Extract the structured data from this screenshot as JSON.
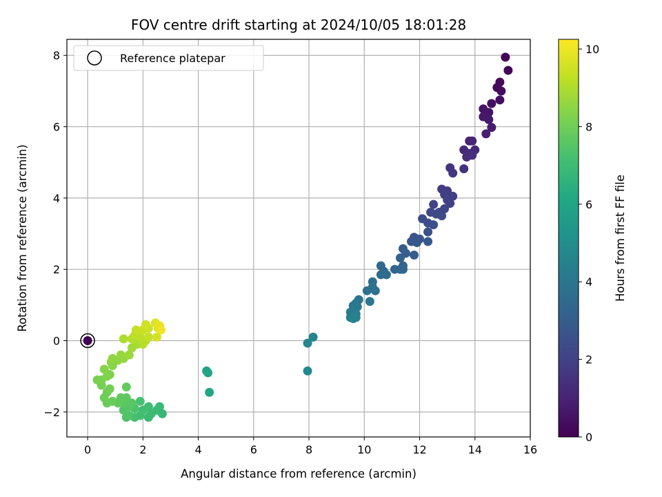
{
  "chart_data": {
    "type": "scatter",
    "title": "FOV centre drift starting at 2024/10/05 18:01:28",
    "xlabel": "Angular distance from reference (arcmin)",
    "ylabel": "Rotation from reference (arcmin)",
    "xlim": [
      -0.75,
      16
    ],
    "ylim": [
      -2.7,
      8.45
    ],
    "xticks": [
      0,
      2,
      4,
      6,
      8,
      10,
      12,
      14,
      16
    ],
    "yticks": [
      -2,
      0,
      2,
      4,
      6,
      8
    ],
    "grid": true,
    "legend": {
      "placement": "upper-left",
      "label": "Reference platepar"
    },
    "reference_point": {
      "x": 0,
      "y": 0
    },
    "colorbar": {
      "label": "Hours from first FF file",
      "colormap": "viridis",
      "range": [
        0,
        10.25
      ],
      "ticks": [
        0,
        2,
        4,
        6,
        8,
        10
      ]
    },
    "series": [
      {
        "points": [
          {
            "x": 0,
            "y": 0,
            "t": 0
          },
          {
            "x": 15.1,
            "y": 7.95,
            "t": 0.05
          },
          {
            "x": 15.2,
            "y": 7.58,
            "t": 0.1
          },
          {
            "x": 14.9,
            "y": 7.25,
            "t": 0.2
          },
          {
            "x": 14.8,
            "y": 7.1,
            "t": 0.25
          },
          {
            "x": 14.95,
            "y": 7.0,
            "t": 0.3
          },
          {
            "x": 14.9,
            "y": 6.75,
            "t": 0.35
          },
          {
            "x": 14.6,
            "y": 6.65,
            "t": 0.45
          },
          {
            "x": 14.3,
            "y": 6.5,
            "t": 0.55
          },
          {
            "x": 14.5,
            "y": 6.4,
            "t": 0.6
          },
          {
            "x": 14.3,
            "y": 6.28,
            "t": 0.65
          },
          {
            "x": 14.5,
            "y": 6.2,
            "t": 0.7
          },
          {
            "x": 14.6,
            "y": 5.98,
            "t": 0.8
          },
          {
            "x": 14.4,
            "y": 5.8,
            "t": 0.9
          },
          {
            "x": 13.8,
            "y": 5.6,
            "t": 1.0
          },
          {
            "x": 13.9,
            "y": 5.6,
            "t": 1.05
          },
          {
            "x": 14.0,
            "y": 5.35,
            "t": 1.15
          },
          {
            "x": 13.6,
            "y": 5.35,
            "t": 1.2
          },
          {
            "x": 13.8,
            "y": 5.25,
            "t": 1.25
          },
          {
            "x": 13.7,
            "y": 5.15,
            "t": 1.3
          },
          {
            "x": 13.9,
            "y": 5.2,
            "t": 1.35
          },
          {
            "x": 13.1,
            "y": 4.85,
            "t": 1.5
          },
          {
            "x": 13.6,
            "y": 4.82,
            "t": 1.55
          },
          {
            "x": 13.2,
            "y": 4.7,
            "t": 1.6
          },
          {
            "x": 12.8,
            "y": 4.25,
            "t": 1.75
          },
          {
            "x": 13.0,
            "y": 4.2,
            "t": 1.8
          },
          {
            "x": 12.9,
            "y": 4.1,
            "t": 1.85
          },
          {
            "x": 13.2,
            "y": 4.05,
            "t": 1.9
          },
          {
            "x": 13.0,
            "y": 3.95,
            "t": 1.95
          },
          {
            "x": 13.1,
            "y": 3.85,
            "t": 2.0
          },
          {
            "x": 12.5,
            "y": 3.82,
            "t": 2.05
          },
          {
            "x": 12.9,
            "y": 3.7,
            "t": 2.1
          },
          {
            "x": 12.7,
            "y": 3.6,
            "t": 2.15
          },
          {
            "x": 12.4,
            "y": 3.6,
            "t": 2.2
          },
          {
            "x": 12.6,
            "y": 3.55,
            "t": 2.25
          },
          {
            "x": 12.8,
            "y": 3.5,
            "t": 2.3
          },
          {
            "x": 12.1,
            "y": 3.42,
            "t": 2.35
          },
          {
            "x": 12.3,
            "y": 3.3,
            "t": 2.4
          },
          {
            "x": 12.5,
            "y": 3.25,
            "t": 2.45
          },
          {
            "x": 12.3,
            "y": 3.05,
            "t": 2.55
          },
          {
            "x": 11.8,
            "y": 2.9,
            "t": 2.65
          },
          {
            "x": 12.0,
            "y": 2.85,
            "t": 2.7
          },
          {
            "x": 11.7,
            "y": 2.78,
            "t": 2.75
          },
          {
            "x": 11.9,
            "y": 2.75,
            "t": 2.8
          },
          {
            "x": 12.3,
            "y": 2.78,
            "t": 2.85
          },
          {
            "x": 11.4,
            "y": 2.58,
            "t": 2.95
          },
          {
            "x": 11.5,
            "y": 2.45,
            "t": 3.0
          },
          {
            "x": 11.8,
            "y": 2.4,
            "t": 3.05
          },
          {
            "x": 11.3,
            "y": 2.32,
            "t": 3.1
          },
          {
            "x": 11.4,
            "y": 2.1,
            "t": 3.2
          },
          {
            "x": 11.1,
            "y": 2.0,
            "t": 3.3
          },
          {
            "x": 11.3,
            "y": 2.0,
            "t": 3.35
          },
          {
            "x": 11.4,
            "y": 2.0,
            "t": 3.4
          },
          {
            "x": 10.6,
            "y": 2.1,
            "t": 3.45
          },
          {
            "x": 10.7,
            "y": 1.95,
            "t": 3.5
          },
          {
            "x": 10.6,
            "y": 1.85,
            "t": 3.55
          },
          {
            "x": 10.8,
            "y": 1.85,
            "t": 3.6
          },
          {
            "x": 10.3,
            "y": 1.65,
            "t": 3.7
          },
          {
            "x": 10.3,
            "y": 1.5,
            "t": 3.75
          },
          {
            "x": 10.1,
            "y": 1.4,
            "t": 3.8
          },
          {
            "x": 10.4,
            "y": 1.4,
            "t": 3.85
          },
          {
            "x": 9.8,
            "y": 1.15,
            "t": 3.95
          },
          {
            "x": 10.2,
            "y": 1.1,
            "t": 4.0
          },
          {
            "x": 9.7,
            "y": 1.05,
            "t": 4.05
          },
          {
            "x": 9.6,
            "y": 0.98,
            "t": 4.1
          },
          {
            "x": 9.75,
            "y": 0.95,
            "t": 4.15
          },
          {
            "x": 9.6,
            "y": 0.85,
            "t": 4.2
          },
          {
            "x": 9.5,
            "y": 0.8,
            "t": 4.25
          },
          {
            "x": 9.7,
            "y": 0.75,
            "t": 4.3
          },
          {
            "x": 9.6,
            "y": 0.68,
            "t": 4.35
          },
          {
            "x": 9.5,
            "y": 0.65,
            "t": 4.4
          },
          {
            "x": 9.7,
            "y": 0.65,
            "t": 4.45
          },
          {
            "x": 9.6,
            "y": 0.62,
            "t": 4.5
          },
          {
            "x": 8.15,
            "y": 0.1,
            "t": 4.6
          },
          {
            "x": 7.95,
            "y": -0.07,
            "t": 4.7
          },
          {
            "x": 7.95,
            "y": -0.85,
            "t": 4.8
          },
          {
            "x": 4.3,
            "y": -0.85,
            "t": 5.9
          },
          {
            "x": 4.35,
            "y": -0.9,
            "t": 6.0
          },
          {
            "x": 4.4,
            "y": -1.45,
            "t": 6.1
          },
          {
            "x": 2.7,
            "y": -2.05,
            "t": 6.8
          },
          {
            "x": 2.6,
            "y": -1.85,
            "t": 6.85
          },
          {
            "x": 2.5,
            "y": -1.95,
            "t": 6.9
          },
          {
            "x": 2.2,
            "y": -2.15,
            "t": 6.95
          },
          {
            "x": 2.3,
            "y": -2.05,
            "t": 7.0
          },
          {
            "x": 2.2,
            "y": -1.85,
            "t": 7.05
          },
          {
            "x": 2.0,
            "y": -1.95,
            "t": 7.1
          },
          {
            "x": 1.9,
            "y": -2.1,
            "t": 7.15
          },
          {
            "x": 1.7,
            "y": -2.15,
            "t": 7.2
          },
          {
            "x": 1.9,
            "y": -1.7,
            "t": 7.25
          },
          {
            "x": 1.7,
            "y": -1.9,
            "t": 7.3
          },
          {
            "x": 1.5,
            "y": -2.1,
            "t": 7.35
          },
          {
            "x": 1.4,
            "y": -2.15,
            "t": 7.4
          },
          {
            "x": 1.3,
            "y": -1.95,
            "t": 7.45
          },
          {
            "x": 1.5,
            "y": -1.85,
            "t": 7.5
          },
          {
            "x": 1.6,
            "y": -1.75,
            "t": 7.55
          },
          {
            "x": 1.3,
            "y": -1.75,
            "t": 7.6
          },
          {
            "x": 1.4,
            "y": -1.6,
            "t": 7.65
          },
          {
            "x": 1.2,
            "y": -1.6,
            "t": 7.7
          },
          {
            "x": 1.1,
            "y": -1.75,
            "t": 7.75
          },
          {
            "x": 1.4,
            "y": -1.3,
            "t": 7.8
          },
          {
            "x": 0.9,
            "y": -1.7,
            "t": 7.85
          },
          {
            "x": 0.7,
            "y": -1.75,
            "t": 7.9
          },
          {
            "x": 0.6,
            "y": -1.6,
            "t": 7.95
          },
          {
            "x": 0.7,
            "y": -1.45,
            "t": 8.0
          },
          {
            "x": 0.8,
            "y": -1.35,
            "t": 8.05
          },
          {
            "x": 0.5,
            "y": -1.25,
            "t": 8.1
          },
          {
            "x": 0.35,
            "y": -1.1,
            "t": 8.15
          },
          {
            "x": 0.5,
            "y": -1.1,
            "t": 8.2
          },
          {
            "x": 0.7,
            "y": -1.0,
            "t": 8.25
          },
          {
            "x": 0.8,
            "y": -0.95,
            "t": 8.3
          },
          {
            "x": 0.6,
            "y": -0.8,
            "t": 8.35
          },
          {
            "x": 0.9,
            "y": -0.7,
            "t": 8.4
          },
          {
            "x": 0.85,
            "y": -0.6,
            "t": 8.45
          },
          {
            "x": 1.1,
            "y": -0.55,
            "t": 8.5
          },
          {
            "x": 0.9,
            "y": -0.5,
            "t": 8.55
          },
          {
            "x": 1.3,
            "y": -0.5,
            "t": 8.6
          },
          {
            "x": 1.2,
            "y": -0.4,
            "t": 8.65
          },
          {
            "x": 1.5,
            "y": -0.4,
            "t": 8.7
          },
          {
            "x": 1.6,
            "y": -0.2,
            "t": 8.8
          },
          {
            "x": 1.8,
            "y": -0.1,
            "t": 8.9
          },
          {
            "x": 1.3,
            "y": 0.05,
            "t": 9.0
          },
          {
            "x": 1.6,
            "y": 0.05,
            "t": 9.05
          },
          {
            "x": 2.0,
            "y": -0.1,
            "t": 9.1
          },
          {
            "x": 2.1,
            "y": 0.0,
            "t": 9.15
          },
          {
            "x": 1.9,
            "y": 0.1,
            "t": 9.2
          },
          {
            "x": 1.7,
            "y": 0.15,
            "t": 9.25
          },
          {
            "x": 2.2,
            "y": 0.1,
            "t": 9.3
          },
          {
            "x": 1.75,
            "y": 0.3,
            "t": 9.35
          },
          {
            "x": 2.0,
            "y": 0.3,
            "t": 9.4
          },
          {
            "x": 2.2,
            "y": 0.35,
            "t": 9.45
          },
          {
            "x": 2.1,
            "y": 0.45,
            "t": 9.5
          },
          {
            "x": 2.5,
            "y": 0.1,
            "t": 9.6
          },
          {
            "x": 2.55,
            "y": 0.35,
            "t": 9.7
          },
          {
            "x": 2.45,
            "y": 0.5,
            "t": 9.8
          },
          {
            "x": 2.6,
            "y": 0.42,
            "t": 9.9
          },
          {
            "x": 2.65,
            "y": 0.3,
            "t": 10.0
          }
        ]
      }
    ]
  }
}
